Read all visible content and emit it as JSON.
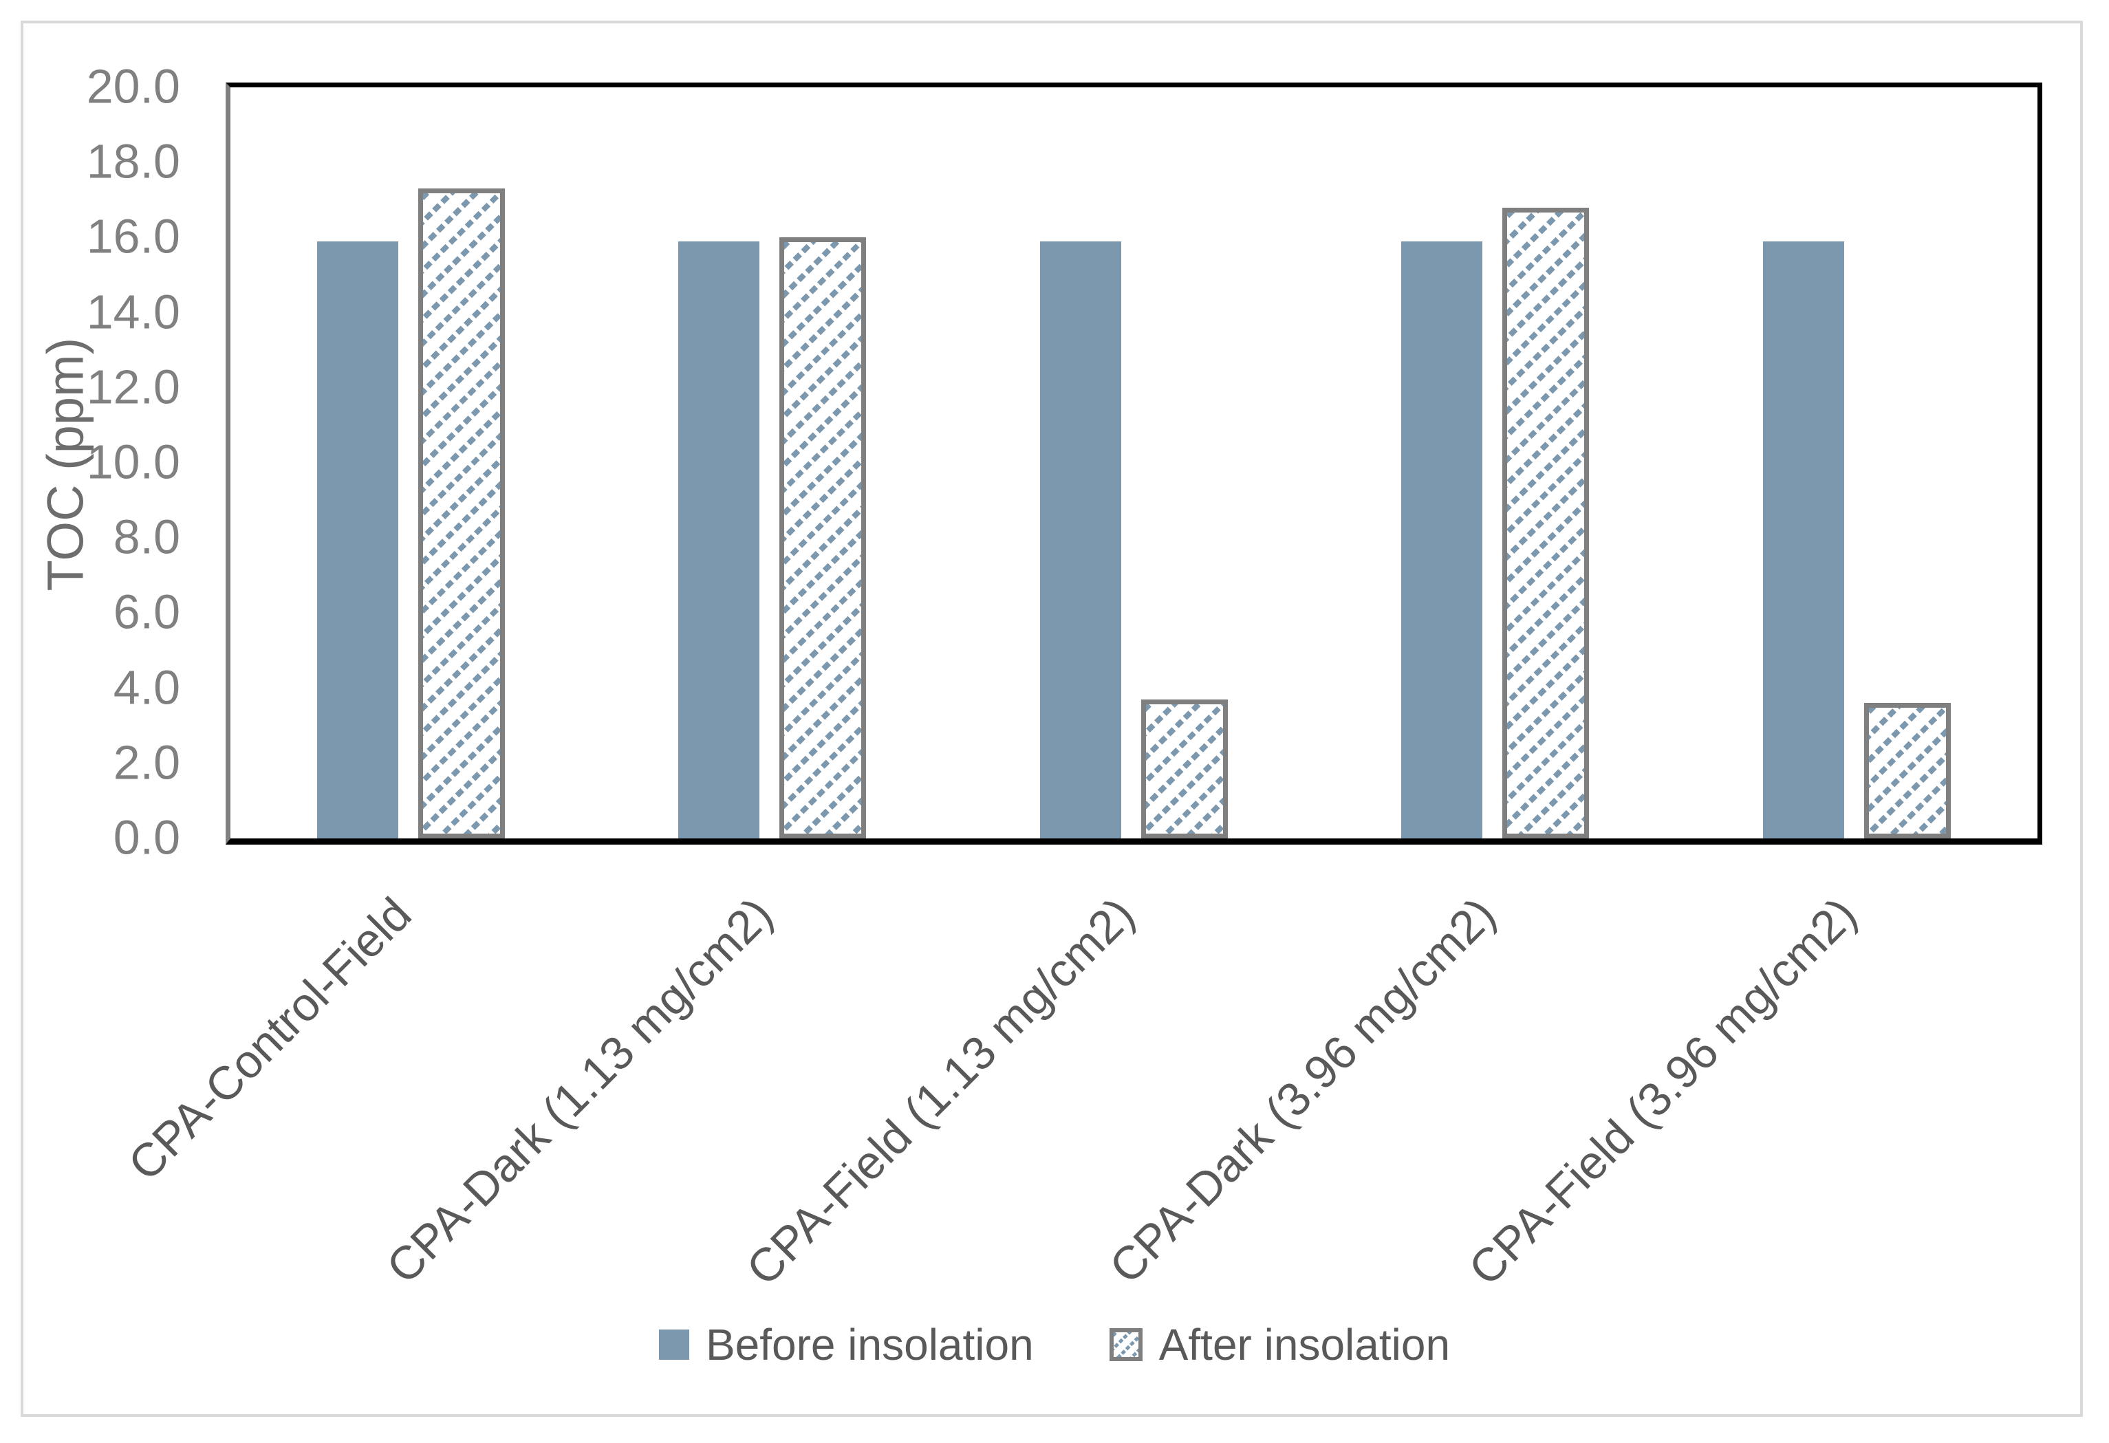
{
  "chart_data": {
    "type": "bar",
    "title": "",
    "categories": [
      "CPA-Control-Field",
      "CPA-Dark (1.13 mg/cm2)",
      "CPA-Field (1.13 mg/cm2)",
      "CPA-Dark (3.96 mg/cm2)",
      "CPA-Field (3.96 mg/cm2)"
    ],
    "series": [
      {
        "name": "Before insolation",
        "style": "solid",
        "values": [
          15.9,
          15.9,
          15.9,
          15.9,
          15.9
        ]
      },
      {
        "name": "After insolation",
        "style": "hatched",
        "values": [
          17.3,
          16.0,
          3.7,
          16.8,
          3.6
        ]
      }
    ],
    "xlabel": "",
    "ylabel": "TOC (ppm)",
    "ylim": [
      0,
      20
    ],
    "ytick_step": 2,
    "ytick_labels": [
      "0.0",
      "2.0",
      "4.0",
      "6.0",
      "8.0",
      "10.0",
      "12.0",
      "14.0",
      "16.0",
      "18.0",
      "20.0"
    ],
    "grid": false,
    "legend_position": "bottom",
    "category_label_rotation_deg": 45
  },
  "colors": {
    "bar_fill": "#7C98AE",
    "hatch_stripe": "#7C98AE",
    "hatch_border": "#7F7F7F",
    "plot_border": "#000000",
    "y_axis_line": "#808080",
    "tick_text": "#808080",
    "category_text": "#595959",
    "legend_text": "#595959",
    "outer_frame": "#D9D9D9",
    "background": "#ffffff"
  }
}
